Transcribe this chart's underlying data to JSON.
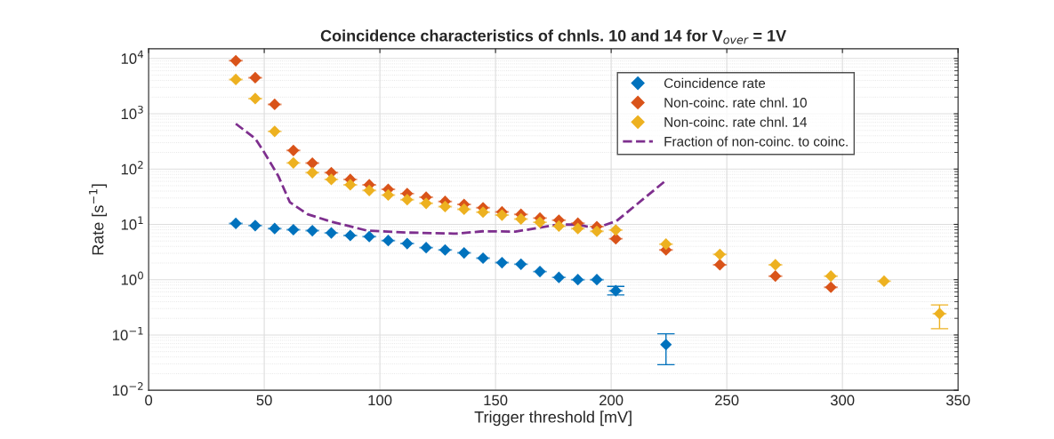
{
  "chart_data": {
    "type": "scatter",
    "title": "Coincidence characteristics of chnls. 10 and 14 for V$_{over}$ = 1V",
    "xlabel": "Trigger threshold [mV]",
    "ylabel": "Rate [s$^{−1}$]",
    "series": [
      {
        "name": "Coincidence rate",
        "color": "#0072bd",
        "x": [
          37.7,
          46.1,
          54.5,
          62.6,
          70.8,
          79,
          87.2,
          95.4,
          103.6,
          111.8,
          120,
          128.2,
          136.4,
          144.6,
          152.8,
          161,
          169.2,
          177.4,
          185.6,
          193.8,
          202,
          223.7
        ],
        "values": [
          10.4,
          9.5,
          8.4,
          8.0,
          7.7,
          7.0,
          6.3,
          6.0,
          5.1,
          4.5,
          3.8,
          3.45,
          3.05,
          2.45,
          2.03,
          1.9,
          1.4,
          1.1,
          1.0,
          1.0,
          0.63,
          0.067
        ],
        "errors": [
          null,
          null,
          null,
          null,
          null,
          null,
          null,
          null,
          null,
          null,
          null,
          null,
          null,
          null,
          null,
          null,
          null,
          null,
          null,
          null,
          [
            0.53,
            0.755
          ],
          [
            0.029,
            0.105
          ]
        ],
        "xerrors": [
          3,
          3,
          3,
          3,
          3,
          3,
          3,
          3,
          3,
          3,
          3,
          3,
          3,
          3,
          3,
          3,
          3,
          3,
          3,
          3,
          3,
          null
        ]
      },
      {
        "name": "Non-coinc. rate chnl. 10",
        "color": "#d95319",
        "x": [
          37.7,
          46.1,
          54.5,
          62.6,
          70.8,
          79,
          87.2,
          95.4,
          103.6,
          111.8,
          120,
          128.2,
          136.4,
          144.6,
          152.8,
          161,
          169.2,
          177.4,
          185.6,
          193.8,
          202,
          223.7,
          247,
          271,
          295
        ],
        "values": [
          9100,
          4490,
          1480,
          217,
          128,
          86,
          65,
          52,
          43,
          36,
          31,
          26,
          23,
          20,
          16.8,
          15.2,
          13,
          11.9,
          10.5,
          9.1,
          5.5,
          3.45,
          1.86,
          1.16,
          0.73
        ],
        "xerrors": [
          3,
          3,
          3,
          3,
          3,
          3,
          3,
          3,
          3,
          3,
          3,
          3,
          3,
          3,
          3,
          3,
          3,
          3,
          3,
          3,
          3,
          3,
          3,
          3,
          3
        ]
      },
      {
        "name": "Non-coinc. rate chnl. 14",
        "color": "#edb120",
        "x": [
          37.7,
          46.1,
          54.5,
          62.6,
          70.8,
          79,
          87.2,
          95.4,
          103.6,
          111.8,
          120,
          128.2,
          136.4,
          144.6,
          152.8,
          161,
          169.2,
          177.4,
          185.6,
          193.8,
          202,
          223.7,
          247,
          271,
          295,
          318,
          342
        ],
        "values": [
          4170,
          1880,
          480,
          129,
          86,
          65,
          52,
          41,
          34,
          28,
          24,
          21,
          18.8,
          16.6,
          14.7,
          12.5,
          10.9,
          9.3,
          8.4,
          7.5,
          7.9,
          4.4,
          2.87,
          1.86,
          1.16,
          0.94,
          0.243
        ],
        "errors": [
          null,
          null,
          null,
          null,
          null,
          null,
          null,
          null,
          null,
          null,
          null,
          null,
          null,
          null,
          null,
          null,
          null,
          null,
          null,
          null,
          null,
          null,
          null,
          null,
          null,
          null,
          [
            0.13,
            0.35
          ]
        ],
        "xerrors": [
          3,
          3,
          3,
          3,
          3,
          3,
          3,
          3,
          3,
          3,
          3,
          3,
          3,
          3,
          3,
          3,
          3,
          3,
          3,
          3,
          3,
          3,
          3,
          3,
          3,
          3,
          3
        ]
      },
      {
        "name": "Fraction of non-coinc. to coinc.",
        "type": "line",
        "color": "#7e2f8e",
        "line_style": "dashed",
        "marker": "none",
        "x": [
          37.7,
          46.1,
          49.5,
          56,
          61.1,
          68.8,
          79,
          94.5,
          112.4,
          133,
          144.5,
          158.6,
          169,
          176.6,
          185.6,
          193.3,
          202.3,
          223.8
        ],
        "values": [
          660,
          355,
          217,
          76,
          25,
          15.2,
          11.2,
          7.7,
          7.1,
          6.8,
          7.5,
          7.4,
          8.7,
          9.9,
          9.9,
          8.5,
          11.5,
          63
        ]
      }
    ],
    "marker": "diamond",
    "log": "y",
    "grid": true,
    "legend": "top right",
    "xlim": [
      0,
      350
    ],
    "xticks": [
      0,
      50,
      100,
      150,
      200,
      250,
      300,
      350
    ],
    "ylim": [
      0.01,
      15000
    ],
    "yticks": [
      {
        "value": 0.01,
        "label": "10$^{−2}$"
      },
      {
        "value": 0.1,
        "label": "10$^{−1}$"
      },
      {
        "value": 1,
        "label": "10$^{0}$"
      },
      {
        "value": 10,
        "label": "10$^{1}$"
      },
      {
        "value": 100,
        "label": "10$^{2}$"
      },
      {
        "value": 1000,
        "label": "10$^{3}$"
      },
      {
        "value": 10000,
        "label": "10$^{4}$"
      }
    ]
  }
}
